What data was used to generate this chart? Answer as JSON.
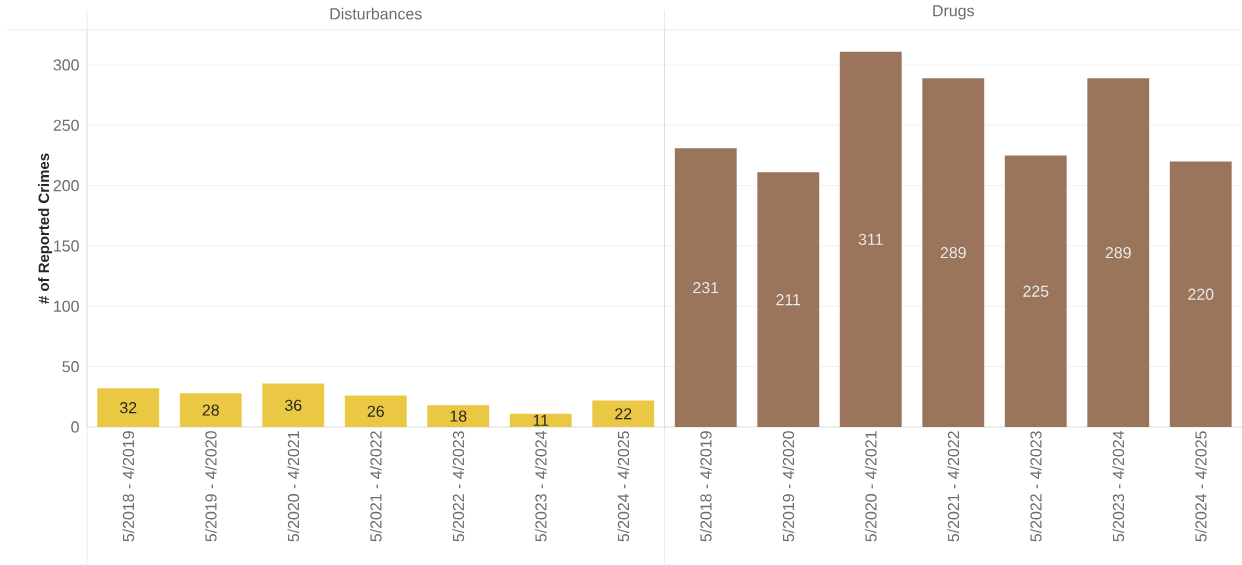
{
  "chart_data": [
    {
      "type": "bar",
      "title": "Disturbances",
      "ylabel": "# of Reported Crimes",
      "categories": [
        "5/2018 - 4/2019",
        "5/2019 - 4/2020",
        "5/2020 - 4/2021",
        "5/2021 - 4/2022",
        "5/2022 - 4/2023",
        "5/2023 - 4/2024",
        "5/2024 - 4/2025"
      ],
      "values": [
        32,
        28,
        36,
        26,
        18,
        11,
        22
      ],
      "color": "#ebc843",
      "ylim": [
        0,
        329
      ],
      "yticks": [
        0,
        50,
        100,
        150,
        200,
        250,
        300
      ],
      "grid": "y",
      "data_labels": true
    },
    {
      "type": "bar",
      "title": "Drugs",
      "categories": [
        "5/2018 - 4/2019",
        "5/2019 - 4/2020",
        "5/2020 - 4/2021",
        "5/2021 - 4/2022",
        "5/2022 - 4/2023",
        "5/2023 - 4/2024",
        "5/2024 - 4/2025"
      ],
      "values": [
        231,
        211,
        311,
        289,
        225,
        289,
        220
      ],
      "color": "#9a755c",
      "ylim": [
        0,
        329
      ],
      "yticks": [
        0,
        50,
        100,
        150,
        200,
        250,
        300
      ],
      "grid": "y",
      "data_labels": true,
      "tick_labels": "x"
    }
  ]
}
